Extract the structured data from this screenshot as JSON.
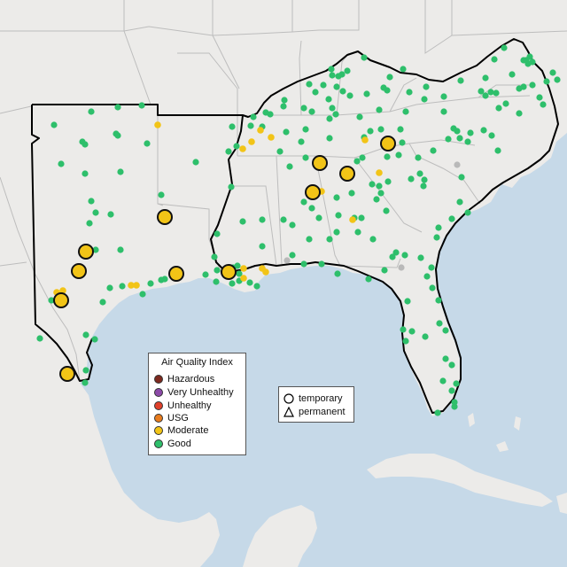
{
  "legend": {
    "title": "Air Quality Index",
    "items": [
      {
        "label": "Hazardous",
        "color": "#7e2a1f"
      },
      {
        "label": "Very Unhealthy",
        "color": "#8c4aa8"
      },
      {
        "label": "Unhealthy",
        "color": "#e0402a"
      },
      {
        "label": "USG",
        "color": "#e87c1e"
      },
      {
        "label": "Moderate",
        "color": "#f2c417"
      },
      {
        "label": "Good",
        "color": "#2ebf6b"
      }
    ]
  },
  "shape_legend": {
    "items": [
      {
        "label": "temporary",
        "icon": "circle-icon"
      },
      {
        "label": "permanent",
        "icon": "triangle-icon"
      }
    ]
  },
  "colors": {
    "water": "#c6d9e8",
    "land": "#ecebe9",
    "state_border": "#bdbdbd",
    "region_outline": "#000000",
    "good": "#2ebf6b",
    "moderate": "#f2c417",
    "unknown": "#b9b9b9"
  }
}
